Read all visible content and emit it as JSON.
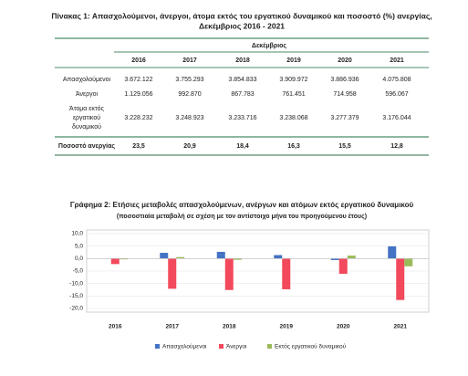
{
  "table": {
    "title": [
      "Πίνακας 1: Απασχολούμενοι, άνεργοι, άτομα εκτός του εργατικού δυναμικού και ποσοστό (%) ανεργίας,",
      "Δεκέμβριος 2016 - 2021"
    ],
    "group_header": "Δεκέμβριος",
    "columns": [
      "2016",
      "2017",
      "2018",
      "2019",
      "2020",
      "2021"
    ],
    "rows": [
      {
        "label": [
          "Απασχολούμενοι"
        ],
        "values": [
          "3.672.122",
          "3.755.293",
          "3.854.833",
          "3.909.972",
          "3.886.936",
          "4.075.808"
        ]
      },
      {
        "label": [
          "Άνεργοι"
        ],
        "values": [
          "1.129.056",
          "992.870",
          "867.783",
          "761.451",
          "714.958",
          "596.067"
        ]
      },
      {
        "label": [
          "Άτομα εκτός",
          "εργατικού",
          "δυναμικού"
        ],
        "values": [
          "3.228.232",
          "3.248.923",
          "3.233.716",
          "3.238.068",
          "3.277.379",
          "3.176.044"
        ]
      },
      {
        "label": [
          "Ποσοστό ανεργίας"
        ],
        "values": [
          "23,5",
          "20,9",
          "18,4",
          "16,3",
          "15,5",
          "12,8"
        ]
      }
    ]
  },
  "chart_data": {
    "type": "bar",
    "title": "Γράφημα 2: Ετήσιες μεταβολές απασχολούμενων, ανέργων και ατόμων εκτός εργατικού δυναμικού",
    "subtitle": "(ποσοστιαία μεταβολή σε σχέση με τον αντίστοιχο μήνα του προηγούμενου έτους)",
    "categories": [
      "2016",
      "2017",
      "2018",
      "2019",
      "2020",
      "2021"
    ],
    "series": [
      {
        "name": "Απασχολούμενοι",
        "color": "#4472c4",
        "values": [
          0.1,
          2.3,
          2.7,
          1.4,
          -0.6,
          4.9
        ]
      },
      {
        "name": "Άνεργοι",
        "color": "#f2495c",
        "values": [
          -2.2,
          -12.1,
          -12.6,
          -12.3,
          -6.1,
          -16.6
        ]
      },
      {
        "name": "Εκτός εργατικού δυναμικού",
        "color": "#9bbb59",
        "values": [
          -0.3,
          0.6,
          -0.5,
          0.1,
          1.2,
          -3.1
        ]
      }
    ],
    "ylim": [
      -20,
      10
    ],
    "yticks": [
      {
        "value": 10,
        "label": "10,0"
      },
      {
        "value": 5,
        "label": "5,0"
      },
      {
        "value": 0,
        "label": "0,0"
      },
      {
        "value": -5,
        "label": "-5,0"
      },
      {
        "value": -10,
        "label": "-10,0"
      },
      {
        "value": -15,
        "label": "-15,0"
      },
      {
        "value": -20,
        "label": "-20,0"
      }
    ],
    "grid": true,
    "legend": "bottom"
  }
}
